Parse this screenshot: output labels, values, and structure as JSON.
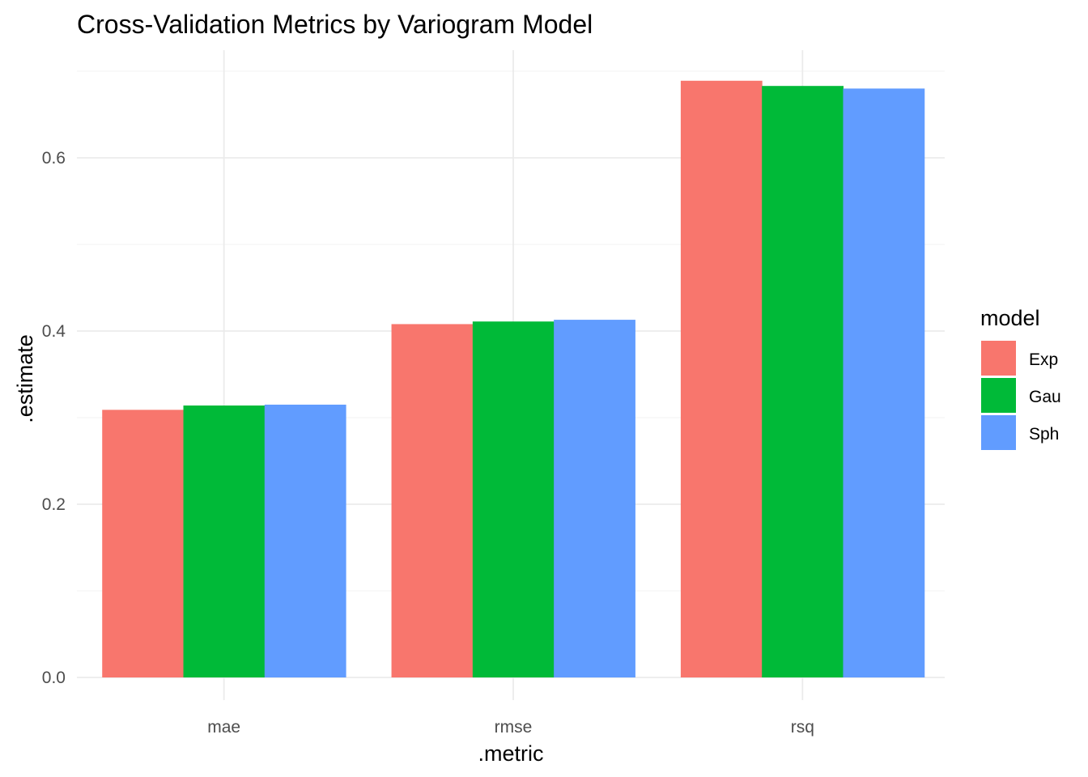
{
  "chart_data": {
    "type": "bar",
    "title": "Cross-Validation Metrics by Variogram Model",
    "xlabel": ".metric",
    "ylabel": ".estimate",
    "categories": [
      "mae",
      "rmse",
      "rsq"
    ],
    "series": [
      {
        "name": "Exp",
        "color": "#F8766D",
        "values": [
          0.309,
          0.408,
          0.689
        ]
      },
      {
        "name": "Gau",
        "color": "#00BA38",
        "values": [
          0.314,
          0.411,
          0.683
        ]
      },
      {
        "name": "Sph",
        "color": "#619CFF",
        "values": [
          0.315,
          0.413,
          0.68
        ]
      }
    ],
    "ylim": [
      0,
      0.7
    ],
    "yticks": [
      0.0,
      0.2,
      0.4,
      0.6
    ],
    "ytick_labels": [
      "0.0",
      "0.2",
      "0.4",
      "0.6"
    ],
    "grid": true,
    "legend": {
      "title": "model",
      "position": "right"
    },
    "colors": {
      "grid_major": "#ebebeb",
      "grid_minor": "#f5f5f5",
      "tick_text": "#4d4d4d"
    }
  }
}
